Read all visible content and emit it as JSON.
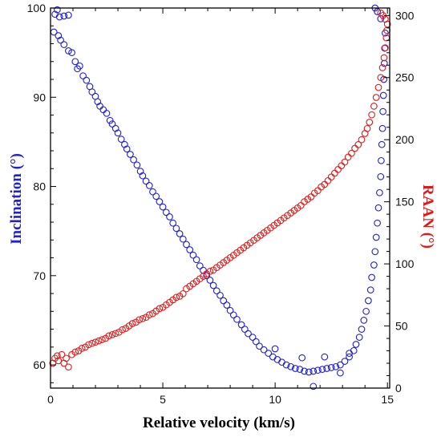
{
  "chart_data": {
    "type": "scatter",
    "xlabel": "Relative velocity (km/s)",
    "ylabel_left": "Inclination (°)",
    "ylabel_right": "RAAN (°)",
    "xlim": [
      0,
      15.1
    ],
    "ylim_left": [
      57.4,
      100
    ],
    "ylim_right": [
      0,
      306
    ],
    "xticks": [
      0,
      5,
      10,
      15
    ],
    "yticks_left": [
      60,
      70,
      80,
      90,
      100
    ],
    "yticks_right": [
      0,
      50,
      100,
      150,
      200,
      250,
      300
    ],
    "grid": false,
    "colors": {
      "inclination": "#1f1fd6",
      "raan": "#e01a1a",
      "axis": "#000000"
    },
    "series": [
      {
        "axis": "left",
        "color": "#1f1fd6",
        "points": [
          [
            0.2,
            99.3
          ],
          [
            0.3,
            99.8
          ],
          [
            0.4,
            99.0
          ],
          [
            0.6,
            99.1
          ],
          [
            0.8,
            99.2
          ],
          [
            0.15,
            97.3
          ],
          [
            0.35,
            96.9
          ],
          [
            0.45,
            96.4
          ],
          [
            0.6,
            95.9
          ],
          [
            0.8,
            95.2
          ],
          [
            0.95,
            95.0
          ],
          [
            1.1,
            94.0
          ],
          [
            1.2,
            93.2
          ],
          [
            1.3,
            93.5
          ],
          [
            1.45,
            92.4
          ],
          [
            1.6,
            91.9
          ],
          [
            1.75,
            91.2
          ],
          [
            1.85,
            90.6
          ],
          [
            2.0,
            90.1
          ],
          [
            2.1,
            89.5
          ],
          [
            2.2,
            89.0
          ],
          [
            2.35,
            88.6
          ],
          [
            2.5,
            88.2
          ],
          [
            2.65,
            87.4
          ],
          [
            2.75,
            87.0
          ],
          [
            2.9,
            86.5
          ],
          [
            3.0,
            86.0
          ],
          [
            3.15,
            85.3
          ],
          [
            3.3,
            84.7
          ],
          [
            3.4,
            84.2
          ],
          [
            3.55,
            83.6
          ],
          [
            3.7,
            83.0
          ],
          [
            3.85,
            82.4
          ],
          [
            4.0,
            81.7
          ],
          [
            4.1,
            81.2
          ],
          [
            4.25,
            80.6
          ],
          [
            4.4,
            80.1
          ],
          [
            4.55,
            79.4
          ],
          [
            4.7,
            78.9
          ],
          [
            4.85,
            78.3
          ],
          [
            5.0,
            77.7
          ],
          [
            5.15,
            77.1
          ],
          [
            5.3,
            76.6
          ],
          [
            5.45,
            75.9
          ],
          [
            5.6,
            75.3
          ],
          [
            5.75,
            74.7
          ],
          [
            5.9,
            74.1
          ],
          [
            6.05,
            73.5
          ],
          [
            6.2,
            72.9
          ],
          [
            6.35,
            72.3
          ],
          [
            6.5,
            71.8
          ],
          [
            6.65,
            71.1
          ],
          [
            6.8,
            70.6
          ],
          [
            6.95,
            70.0
          ],
          [
            7.1,
            69.5
          ],
          [
            7.25,
            68.9
          ],
          [
            7.4,
            68.3
          ],
          [
            7.55,
            67.8
          ],
          [
            7.7,
            67.2
          ],
          [
            7.85,
            66.7
          ],
          [
            8.0,
            66.1
          ],
          [
            8.15,
            65.6
          ],
          [
            8.3,
            65.1
          ],
          [
            8.5,
            64.5
          ],
          [
            8.65,
            64.0
          ],
          [
            8.8,
            63.5
          ],
          [
            9.0,
            63.1
          ],
          [
            9.15,
            62.6
          ],
          [
            9.3,
            62.1
          ],
          [
            9.5,
            61.7
          ],
          [
            9.7,
            61.3
          ],
          [
            9.9,
            60.9
          ],
          [
            10.1,
            60.6
          ],
          [
            10.3,
            60.3
          ],
          [
            10.5,
            60.0
          ],
          [
            10.7,
            59.8
          ],
          [
            10.9,
            59.6
          ],
          [
            11.1,
            59.5
          ],
          [
            11.3,
            59.3
          ],
          [
            11.5,
            59.2
          ],
          [
            11.7,
            59.3
          ],
          [
            11.9,
            59.4
          ],
          [
            12.1,
            59.5
          ],
          [
            12.3,
            59.6
          ],
          [
            12.5,
            59.7
          ],
          [
            12.7,
            59.8
          ],
          [
            12.9,
            60.0
          ],
          [
            13.1,
            60.4
          ],
          [
            13.3,
            60.9
          ],
          [
            13.5,
            61.6
          ],
          [
            13.6,
            62.3
          ],
          [
            13.75,
            63.1
          ],
          [
            13.85,
            64.0
          ],
          [
            13.95,
            65.0
          ],
          [
            14.05,
            66.0
          ],
          [
            14.15,
            67.2
          ],
          [
            14.25,
            68.4
          ],
          [
            14.3,
            69.8
          ],
          [
            14.4,
            71.2
          ],
          [
            14.45,
            72.7
          ],
          [
            14.5,
            74.3
          ],
          [
            14.55,
            75.9
          ],
          [
            14.6,
            77.6
          ],
          [
            14.65,
            79.3
          ],
          [
            14.7,
            81.1
          ],
          [
            14.72,
            82.9
          ],
          [
            14.75,
            84.7
          ],
          [
            14.78,
            86.5
          ],
          [
            14.8,
            88.4
          ],
          [
            14.82,
            90.2
          ],
          [
            14.84,
            92.0
          ],
          [
            14.86,
            93.8
          ],
          [
            14.88,
            95.5
          ],
          [
            14.9,
            97.2
          ],
          [
            14.7,
            98.8
          ],
          [
            14.55,
            99.6
          ],
          [
            14.45,
            100.0
          ],
          [
            11.7,
            57.6
          ],
          [
            11.2,
            60.8
          ],
          [
            10.0,
            61.8
          ],
          [
            12.2,
            60.9
          ],
          [
            12.9,
            59.1
          ],
          [
            13.3,
            61.3
          ]
        ]
      },
      {
        "axis": "right",
        "color": "#e01a1a",
        "points": [
          [
            0.1,
            20
          ],
          [
            0.2,
            24
          ],
          [
            0.3,
            26
          ],
          [
            0.35,
            22
          ],
          [
            0.5,
            27
          ],
          [
            0.6,
            20
          ],
          [
            0.7,
            24
          ],
          [
            0.8,
            17
          ],
          [
            0.95,
            27
          ],
          [
            1.1,
            29
          ],
          [
            1.25,
            30
          ],
          [
            1.4,
            32
          ],
          [
            1.55,
            33
          ],
          [
            1.7,
            35
          ],
          [
            1.85,
            36
          ],
          [
            2.0,
            37
          ],
          [
            2.15,
            38
          ],
          [
            2.3,
            39
          ],
          [
            2.45,
            40
          ],
          [
            2.6,
            42
          ],
          [
            2.75,
            43
          ],
          [
            2.9,
            44
          ],
          [
            3.05,
            45
          ],
          [
            3.2,
            47
          ],
          [
            3.35,
            48
          ],
          [
            3.5,
            50
          ],
          [
            3.65,
            52
          ],
          [
            3.8,
            53
          ],
          [
            3.95,
            55
          ],
          [
            4.1,
            56
          ],
          [
            4.25,
            57
          ],
          [
            4.4,
            59
          ],
          [
            4.55,
            60
          ],
          [
            4.7,
            62
          ],
          [
            4.85,
            64
          ],
          [
            5.0,
            65
          ],
          [
            5.15,
            67
          ],
          [
            5.3,
            69
          ],
          [
            5.45,
            71
          ],
          [
            5.6,
            73
          ],
          [
            5.75,
            74
          ],
          [
            5.9,
            76
          ],
          [
            6.05,
            80
          ],
          [
            6.2,
            82
          ],
          [
            6.35,
            84
          ],
          [
            6.5,
            86
          ],
          [
            6.65,
            88
          ],
          [
            6.8,
            90
          ],
          [
            6.95,
            92
          ],
          [
            7.1,
            94
          ],
          [
            7.25,
            95
          ],
          [
            7.4,
            97
          ],
          [
            7.55,
            99
          ],
          [
            7.7,
            101
          ],
          [
            7.85,
            103
          ],
          [
            8.0,
            105
          ],
          [
            8.15,
            107
          ],
          [
            8.3,
            109
          ],
          [
            8.45,
            111
          ],
          [
            8.6,
            113
          ],
          [
            8.75,
            115
          ],
          [
            8.9,
            117
          ],
          [
            9.05,
            119
          ],
          [
            9.2,
            121
          ],
          [
            9.35,
            123
          ],
          [
            9.5,
            125
          ],
          [
            9.65,
            127
          ],
          [
            9.8,
            129
          ],
          [
            9.95,
            131
          ],
          [
            10.1,
            133
          ],
          [
            10.25,
            135
          ],
          [
            10.4,
            137
          ],
          [
            10.55,
            139
          ],
          [
            10.7,
            141
          ],
          [
            10.85,
            143
          ],
          [
            11.0,
            145
          ],
          [
            11.15,
            147
          ],
          [
            11.3,
            150
          ],
          [
            11.45,
            152
          ],
          [
            11.6,
            154
          ],
          [
            11.75,
            157
          ],
          [
            11.9,
            159
          ],
          [
            12.05,
            162
          ],
          [
            12.2,
            164
          ],
          [
            12.35,
            167
          ],
          [
            12.5,
            170
          ],
          [
            12.65,
            173
          ],
          [
            12.8,
            176
          ],
          [
            12.95,
            179
          ],
          [
            13.1,
            182
          ],
          [
            13.25,
            186
          ],
          [
            13.4,
            189
          ],
          [
            13.55,
            193
          ],
          [
            13.7,
            196
          ],
          [
            13.85,
            200
          ],
          [
            14.0,
            205
          ],
          [
            14.1,
            209
          ],
          [
            14.2,
            214
          ],
          [
            14.3,
            220
          ],
          [
            14.4,
            227
          ],
          [
            14.5,
            234
          ],
          [
            14.6,
            242
          ],
          [
            14.7,
            250
          ],
          [
            14.78,
            258
          ],
          [
            14.85,
            266
          ],
          [
            14.9,
            274
          ],
          [
            14.95,
            282
          ],
          [
            14.98,
            288
          ],
          [
            15.0,
            293
          ],
          [
            14.9,
            297
          ],
          [
            14.8,
            300
          ],
          [
            14.7,
            302
          ]
        ]
      }
    ]
  }
}
